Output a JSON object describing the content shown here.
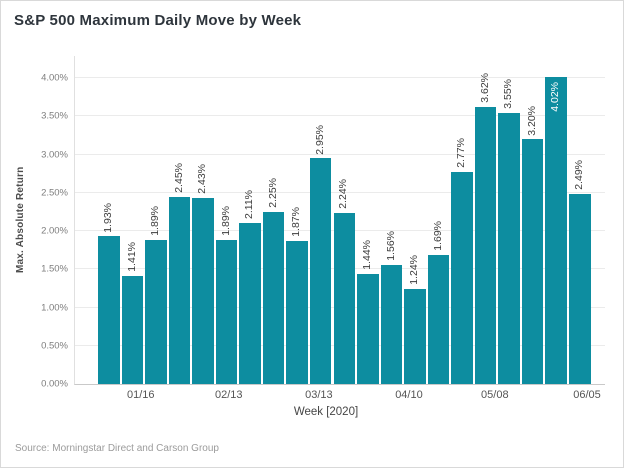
{
  "header": {
    "title": "S&P 500 Maximum Daily Move by Week"
  },
  "footer": {
    "source": "Source: Morningstar Direct and Carson Group"
  },
  "colors": {
    "bar": "#0D8DA0",
    "bar_label": "#3d3d3d",
    "bar_label_inside": "#ffffff",
    "gridline": "#ebebeb",
    "axis_line": "#c9c9c9"
  },
  "chart_data": {
    "type": "bar",
    "title": "S&P 500 Maximum Daily Move by Week",
    "xlabel": "Week [2020]",
    "ylabel": "Max. Absolute Return",
    "ylim": [
      0,
      4.29
    ],
    "grid": "horizontal",
    "legend": "none",
    "bar_color": "#0D8DA0",
    "bars": [
      {
        "value": 1.93,
        "label": "1.93%"
      },
      {
        "value": 1.41,
        "label": "1.41%"
      },
      {
        "value": 1.89,
        "label": "1.89%"
      },
      {
        "value": 2.45,
        "label": "2.45%"
      },
      {
        "value": 2.43,
        "label": "2.43%"
      },
      {
        "value": 1.89,
        "label": "1.89%"
      },
      {
        "value": 2.11,
        "label": "2.11%"
      },
      {
        "value": 2.25,
        "label": "2.25%"
      },
      {
        "value": 1.87,
        "label": "1.87%"
      },
      {
        "value": 2.95,
        "label": "2.95%"
      },
      {
        "value": 2.24,
        "label": "2.24%"
      },
      {
        "value": 1.44,
        "label": "1.44%"
      },
      {
        "value": 1.56,
        "label": "1.56%"
      },
      {
        "value": 1.24,
        "label": "1.24%"
      },
      {
        "value": 1.69,
        "label": "1.69%"
      },
      {
        "value": 2.77,
        "label": "2.77%"
      },
      {
        "value": 3.62,
        "label": "3.62%"
      },
      {
        "value": 3.55,
        "label": "3.55%"
      },
      {
        "value": 3.2,
        "label": "3.20%"
      },
      {
        "value": 4.02,
        "label": "4.02%",
        "label_inside": true
      },
      {
        "value": 2.49,
        "label": "2.49%"
      }
    ],
    "x_ticks": [
      {
        "label": "01/16",
        "pos": 0.126
      },
      {
        "label": "02/13",
        "pos": 0.292
      },
      {
        "label": "03/13",
        "pos": 0.462
      },
      {
        "label": "04/10",
        "pos": 0.632
      },
      {
        "label": "05/08",
        "pos": 0.794
      },
      {
        "label": "06/05",
        "pos": 0.968
      }
    ],
    "y_ticks": [
      {
        "value": 0.0,
        "label": "0.00%"
      },
      {
        "value": 0.5,
        "label": "0.50%"
      },
      {
        "value": 1.0,
        "label": "1.00%"
      },
      {
        "value": 1.5,
        "label": "1.50%"
      },
      {
        "value": 2.0,
        "label": "2.00%"
      },
      {
        "value": 2.5,
        "label": "2.50%"
      },
      {
        "value": 3.0,
        "label": "3.00%"
      },
      {
        "value": 3.5,
        "label": "3.50%"
      },
      {
        "value": 4.0,
        "label": "4.00%"
      }
    ]
  }
}
